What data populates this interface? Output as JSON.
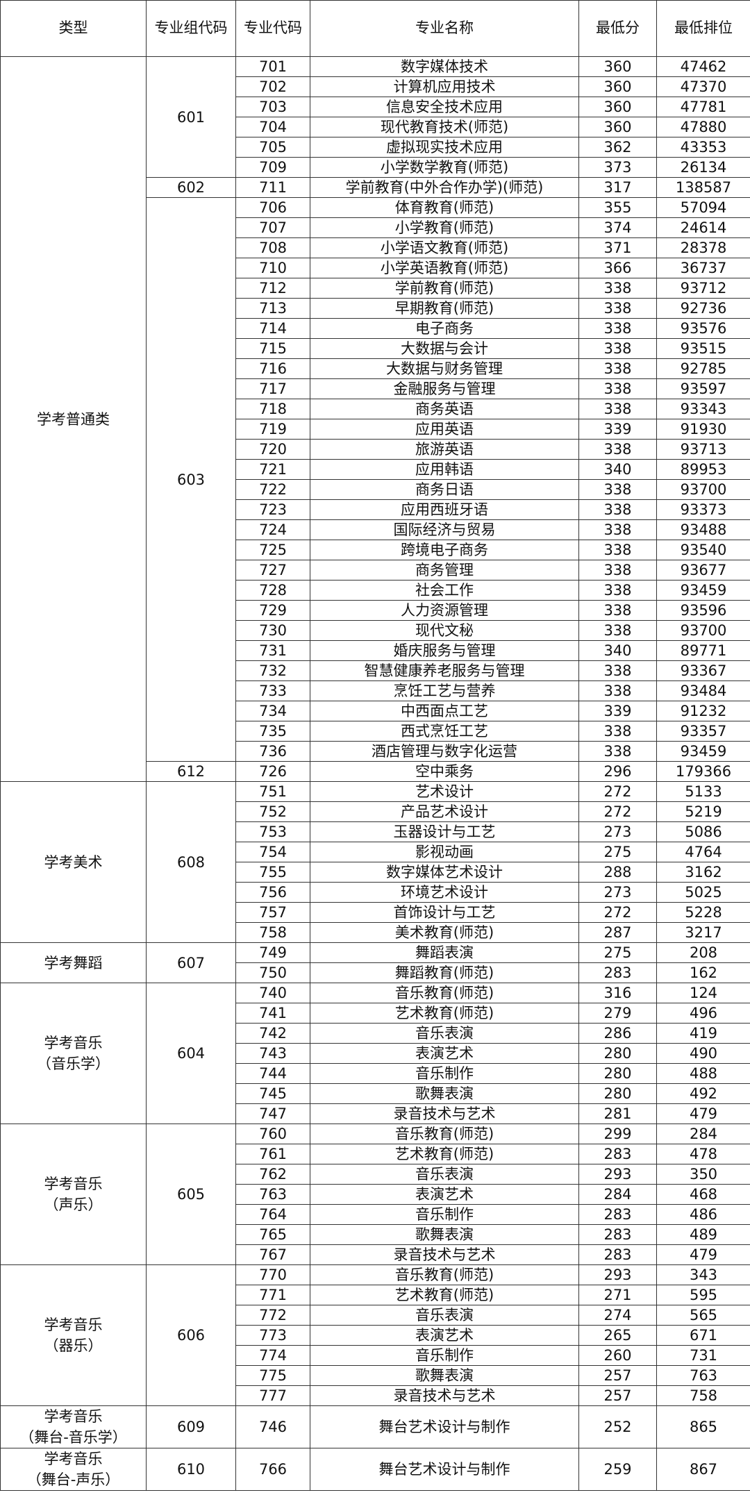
{
  "header": [
    "类型",
    "专业组代码",
    "专业代码",
    "专业名称",
    "最低分",
    "最低排位"
  ],
  "groups": [
    {
      "type": [
        "学考普通类"
      ],
      "subgroups": [
        {
          "code": 601,
          "rows": [
            [
              701,
              "数字媒体技术",
              360,
              47462
            ],
            [
              702,
              "计算机应用技术",
              360,
              47370
            ],
            [
              703,
              "信息安全技术应用",
              360,
              47781
            ],
            [
              704,
              "现代教育技术(师范)",
              360,
              47880
            ],
            [
              705,
              "虚拟现实技术应用",
              362,
              43353
            ],
            [
              709,
              "小学数学教育(师范)",
              373,
              26134
            ]
          ]
        },
        {
          "code": 602,
          "rows": [
            [
              711,
              "学前教育(中外合作办学)(师范)",
              317,
              138587
            ]
          ]
        },
        {
          "code": 603,
          "rows": [
            [
              706,
              "体育教育(师范)",
              355,
              57094
            ],
            [
              707,
              "小学教育(师范)",
              374,
              24614
            ],
            [
              708,
              "小学语文教育(师范)",
              371,
              28378
            ],
            [
              710,
              "小学英语教育(师范)",
              366,
              36737
            ],
            [
              712,
              "学前教育(师范)",
              338,
              93712
            ],
            [
              713,
              "早期教育(师范)",
              338,
              92736
            ],
            [
              714,
              "电子商务",
              338,
              93576
            ],
            [
              715,
              "大数据与会计",
              338,
              93515
            ],
            [
              716,
              "大数据与财务管理",
              338,
              92785
            ],
            [
              717,
              "金融服务与管理",
              338,
              93597
            ],
            [
              718,
              "商务英语",
              338,
              93343
            ],
            [
              719,
              "应用英语",
              339,
              91930
            ],
            [
              720,
              "旅游英语",
              338,
              93713
            ],
            [
              721,
              "应用韩语",
              340,
              89953
            ],
            [
              722,
              "商务日语",
              338,
              93700
            ],
            [
              723,
              "应用西班牙语",
              338,
              93373
            ],
            [
              724,
              "国际经济与贸易",
              338,
              93488
            ],
            [
              725,
              "跨境电子商务",
              338,
              93540
            ],
            [
              727,
              "商务管理",
              338,
              93677
            ],
            [
              728,
              "社会工作",
              338,
              93459
            ],
            [
              729,
              "人力资源管理",
              338,
              93596
            ],
            [
              730,
              "现代文秘",
              338,
              93700
            ],
            [
              731,
              "婚庆服务与管理",
              340,
              89771
            ],
            [
              732,
              "智慧健康养老服务与管理",
              338,
              93367
            ],
            [
              733,
              "烹饪工艺与营养",
              338,
              93484
            ],
            [
              734,
              "中西面点工艺",
              339,
              91232
            ],
            [
              735,
              "西式烹饪工艺",
              338,
              93357
            ],
            [
              736,
              "酒店管理与数字化运营",
              338,
              93459
            ]
          ]
        },
        {
          "code": 612,
          "rows": [
            [
              726,
              "空中乘务",
              296,
              179366
            ]
          ]
        }
      ]
    },
    {
      "type": [
        "学考美术"
      ],
      "subgroups": [
        {
          "code": 608,
          "rows": [
            [
              751,
              "艺术设计",
              272,
              5133
            ],
            [
              752,
              "产品艺术设计",
              272,
              5219
            ],
            [
              753,
              "玉器设计与工艺",
              273,
              5086
            ],
            [
              754,
              "影视动画",
              275,
              4764
            ],
            [
              755,
              "数字媒体艺术设计",
              288,
              3162
            ],
            [
              756,
              "环境艺术设计",
              273,
              5025
            ],
            [
              757,
              "首饰设计与工艺",
              272,
              5228
            ],
            [
              758,
              "美术教育(师范)",
              287,
              3217
            ]
          ]
        }
      ]
    },
    {
      "type": [
        "学考舞蹈"
      ],
      "subgroups": [
        {
          "code": 607,
          "rows": [
            [
              749,
              "舞蹈表演",
              275,
              208
            ],
            [
              750,
              "舞蹈教育(师范)",
              283,
              162
            ]
          ]
        }
      ]
    },
    {
      "type": [
        "学考音乐",
        "（音乐学）"
      ],
      "subgroups": [
        {
          "code": 604,
          "rows": [
            [
              740,
              "音乐教育(师范)",
              316,
              124
            ],
            [
              741,
              "艺术教育(师范)",
              279,
              496
            ],
            [
              742,
              "音乐表演",
              286,
              419
            ],
            [
              743,
              "表演艺术",
              280,
              490
            ],
            [
              744,
              "音乐制作",
              280,
              488
            ],
            [
              745,
              "歌舞表演",
              280,
              492
            ],
            [
              747,
              "录音技术与艺术",
              281,
              479
            ]
          ]
        }
      ]
    },
    {
      "type": [
        "学考音乐",
        "（声乐）"
      ],
      "subgroups": [
        {
          "code": 605,
          "rows": [
            [
              760,
              "音乐教育(师范)",
              299,
              284
            ],
            [
              761,
              "艺术教育(师范)",
              283,
              478
            ],
            [
              762,
              "音乐表演",
              293,
              350
            ],
            [
              763,
              "表演艺术",
              284,
              468
            ],
            [
              764,
              "音乐制作",
              283,
              486
            ],
            [
              765,
              "歌舞表演",
              283,
              489
            ],
            [
              767,
              "录音技术与艺术",
              283,
              479
            ]
          ]
        }
      ]
    },
    {
      "type": [
        "学考音乐",
        "（器乐）"
      ],
      "subgroups": [
        {
          "code": 606,
          "rows": [
            [
              770,
              "音乐教育(师范)",
              293,
              343
            ],
            [
              771,
              "艺术教育(师范)",
              271,
              595
            ],
            [
              772,
              "音乐表演",
              274,
              565
            ],
            [
              773,
              "表演艺术",
              265,
              671
            ],
            [
              774,
              "音乐制作",
              260,
              731
            ],
            [
              775,
              "歌舞表演",
              257,
              763
            ],
            [
              777,
              "录音技术与艺术",
              257,
              758
            ]
          ]
        }
      ]
    },
    {
      "type": [
        "学考音乐",
        "（舞台-音乐学）"
      ],
      "subgroups": [
        {
          "code": 609,
          "rows": [
            [
              746,
              "舞台艺术设计与制作",
              252,
              865
            ]
          ]
        }
      ]
    },
    {
      "type": [
        "学考音乐",
        "（舞台-声乐）"
      ],
      "subgroups": [
        {
          "code": 610,
          "rows": [
            [
              766,
              "舞台艺术设计与制作",
              259,
              867
            ]
          ]
        }
      ]
    }
  ]
}
